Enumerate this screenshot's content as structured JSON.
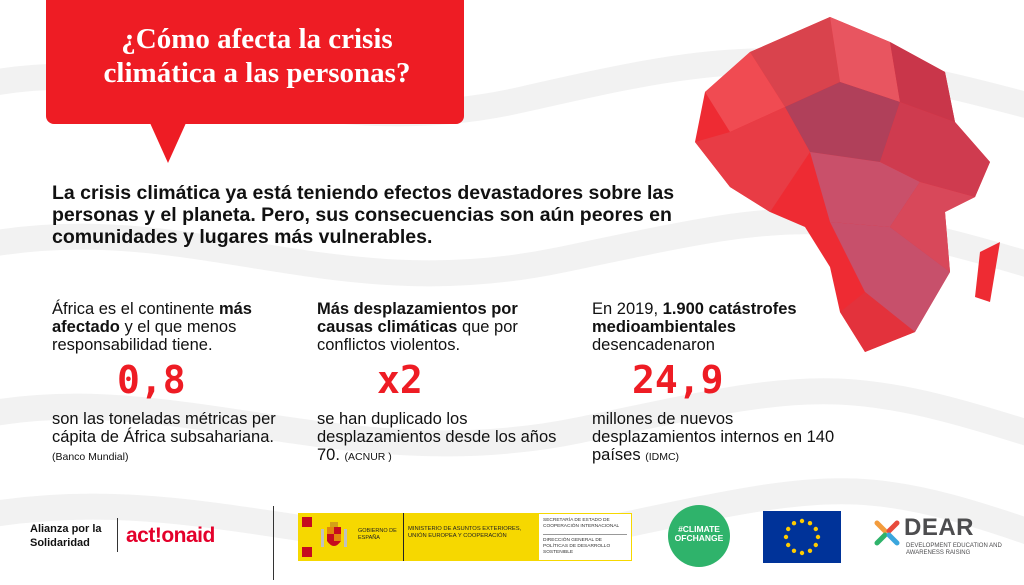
{
  "title": "¿Cómo afecta la crisis climática a las personas?",
  "intro": "La crisis climática ya está teniendo efectos devastadores sobre las personas y el planeta. Pero, sus consecuencias son aún peores en comunidades y lugares más vulnerables.",
  "colors": {
    "accent": "#ee1c24",
    "text": "#111111"
  },
  "stats": [
    {
      "head_pre": "África es el continente ",
      "head_bold": "más afectado",
      "head_post": " y el que menos responsabilidad tiene.",
      "value": "0,8",
      "desc": "son las toneladas métricas per cápita de África subsahariana.",
      "source": "(Banco Mundial)"
    },
    {
      "head_pre": "",
      "head_bold": "Más desplazamientos por causas climáticas",
      "head_post": " que por conflictos violentos.",
      "value": "x2",
      "desc": "se han duplicado los desplazamientos desde los años 70.",
      "source": "(ACNUR )"
    },
    {
      "head_pre": "En 2019, ",
      "head_bold": "1.900 catástrofes medioambientales",
      "head_post": " desencadenaron",
      "value": "24,9",
      "desc": "millones de nuevos desplazamientos internos en 140 países",
      "source": "(IDMC)"
    }
  ],
  "logos": {
    "alianza_line1": "Alianza por la",
    "alianza_line2": "Solidaridad",
    "actionaid": "act!onaid",
    "gob_gov": "GOBIERNO DE ESPAÑA",
    "gob_min": "MINISTERIO DE ASUNTOS EXTERIORES, UNIÓN EUROPEA Y COOPERACIÓN",
    "gob_sec1": "SECRETARÍA DE ESTADO DE COOPERACIÓN INTERNACIONAL",
    "gob_sec2": "DIRECCIÓN GENERAL DE POLÍTICAS DE DESARROLLO SOSTENIBLE",
    "climate_line1": "#CLIMATE",
    "climate_line2": "OFCHANGE",
    "dear": "DEAR",
    "dear_sub": "DEVELOPMENT EDUCATION AND AWARENESS RAISING"
  }
}
